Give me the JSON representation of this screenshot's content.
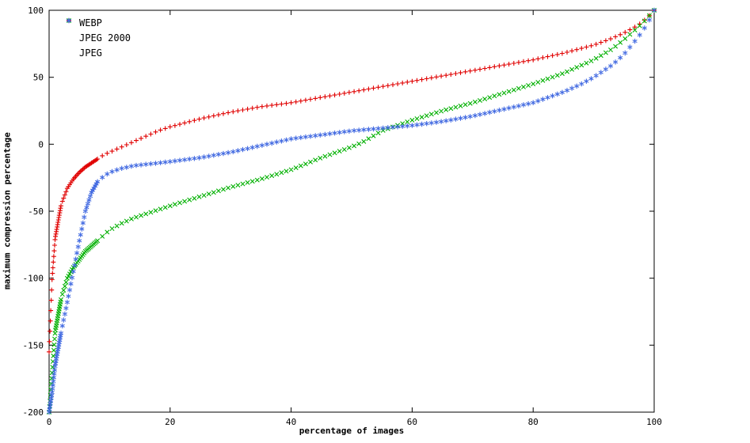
{
  "chart_data": {
    "type": "scatter",
    "title": "",
    "xlabel": "percentage of images",
    "ylabel": "maximum compression percentage",
    "xlim": [
      0,
      100
    ],
    "ylim": [
      -200,
      100
    ],
    "xticks": [
      0,
      20,
      40,
      60,
      80,
      100
    ],
    "yticks": [
      -200,
      -150,
      -100,
      -50,
      0,
      50,
      100
    ],
    "grid": false,
    "legend_position": "top-left",
    "series": [
      {
        "name": "WEBP",
        "marker": "plus",
        "color": "#e00000",
        "points": [
          [
            0,
            -155
          ],
          [
            0.5,
            -100
          ],
          [
            1,
            -70
          ],
          [
            2,
            -45
          ],
          [
            3,
            -33
          ],
          [
            4,
            -26
          ],
          [
            5,
            -21
          ],
          [
            6,
            -17
          ],
          [
            7,
            -14
          ],
          [
            8,
            -11
          ],
          [
            9,
            -8
          ],
          [
            10,
            -6
          ],
          [
            12,
            -2
          ],
          [
            14,
            2
          ],
          [
            16,
            6
          ],
          [
            18,
            10
          ],
          [
            20,
            13
          ],
          [
            25,
            19
          ],
          [
            30,
            24
          ],
          [
            35,
            28
          ],
          [
            40,
            31
          ],
          [
            45,
            35
          ],
          [
            50,
            39
          ],
          [
            55,
            43
          ],
          [
            60,
            47
          ],
          [
            65,
            51
          ],
          [
            70,
            55
          ],
          [
            75,
            59
          ],
          [
            80,
            63
          ],
          [
            85,
            68
          ],
          [
            90,
            74
          ],
          [
            93,
            79
          ],
          [
            95,
            83
          ],
          [
            97,
            88
          ],
          [
            98,
            91
          ],
          [
            99,
            95
          ],
          [
            100,
            100
          ]
        ]
      },
      {
        "name": "JPEG 2000",
        "marker": "cross",
        "color": "#00b000",
        "points": [
          [
            0,
            -200
          ],
          [
            0.5,
            -170
          ],
          [
            1,
            -140
          ],
          [
            2,
            -115
          ],
          [
            3,
            -100
          ],
          [
            4,
            -92
          ],
          [
            5,
            -86
          ],
          [
            6,
            -80
          ],
          [
            7,
            -76
          ],
          [
            8,
            -72
          ],
          [
            9,
            -68
          ],
          [
            10,
            -64
          ],
          [
            12,
            -59
          ],
          [
            14,
            -55
          ],
          [
            16,
            -52
          ],
          [
            18,
            -49
          ],
          [
            20,
            -46
          ],
          [
            25,
            -39
          ],
          [
            30,
            -32
          ],
          [
            35,
            -26
          ],
          [
            40,
            -19
          ],
          [
            45,
            -10
          ],
          [
            50,
            -2
          ],
          [
            52,
            2
          ],
          [
            55,
            10
          ],
          [
            60,
            18
          ],
          [
            65,
            25
          ],
          [
            70,
            31
          ],
          [
            75,
            38
          ],
          [
            80,
            45
          ],
          [
            85,
            53
          ],
          [
            90,
            63
          ],
          [
            93,
            71
          ],
          [
            95,
            78
          ],
          [
            97,
            86
          ],
          [
            98,
            90
          ],
          [
            99,
            95
          ],
          [
            100,
            100
          ]
        ]
      },
      {
        "name": "JPEG",
        "marker": "asterisk",
        "color": "#4169e1",
        "points": [
          [
            0,
            -200
          ],
          [
            0.5,
            -185
          ],
          [
            1,
            -165
          ],
          [
            2,
            -140
          ],
          [
            3,
            -118
          ],
          [
            4,
            -95
          ],
          [
            5,
            -72
          ],
          [
            6,
            -50
          ],
          [
            7,
            -36
          ],
          [
            8,
            -28
          ],
          [
            9,
            -24
          ],
          [
            10,
            -21
          ],
          [
            12,
            -18
          ],
          [
            14,
            -16
          ],
          [
            16,
            -15
          ],
          [
            18,
            -14
          ],
          [
            20,
            -13
          ],
          [
            25,
            -10
          ],
          [
            30,
            -6
          ],
          [
            33,
            -3
          ],
          [
            35,
            -1
          ],
          [
            38,
            2
          ],
          [
            40,
            4
          ],
          [
            45,
            7
          ],
          [
            50,
            10
          ],
          [
            55,
            12
          ],
          [
            60,
            14
          ],
          [
            65,
            17
          ],
          [
            70,
            21
          ],
          [
            75,
            26
          ],
          [
            80,
            31
          ],
          [
            85,
            39
          ],
          [
            88,
            45
          ],
          [
            90,
            50
          ],
          [
            93,
            59
          ],
          [
            95,
            67
          ],
          [
            97,
            78
          ],
          [
            98,
            84
          ],
          [
            99,
            91
          ],
          [
            100,
            100
          ]
        ]
      }
    ]
  }
}
